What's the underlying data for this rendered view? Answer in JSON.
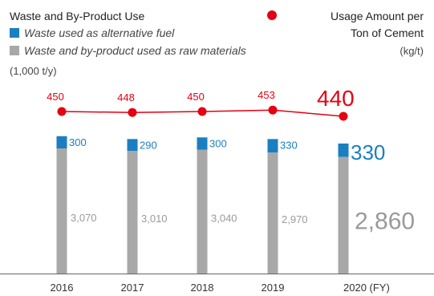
{
  "chart_data": {
    "type": "bar",
    "title": "Waste and By-Product Use",
    "unit_left": "(1,000 t/y)",
    "categories": [
      "2016",
      "2017",
      "2018",
      "2019",
      "2020 (FY)"
    ],
    "series": [
      {
        "name": "Waste used as alternative fuel",
        "values": [
          300,
          290,
          300,
          330,
          330
        ],
        "color": "#1a7fc1"
      },
      {
        "name": "Waste and by-product used as raw materials",
        "values": [
          3070,
          3010,
          3040,
          2970,
          2860
        ],
        "color": "#a8a8a8"
      }
    ],
    "line_series": {
      "name_line1": "Usage Amount per",
      "name_line2": "Ton of Cement",
      "unit": "(kg/t)",
      "values": [
        450,
        448,
        450,
        453,
        440
      ],
      "color": "#e50012"
    },
    "grid": false,
    "legend_position": "top"
  }
}
